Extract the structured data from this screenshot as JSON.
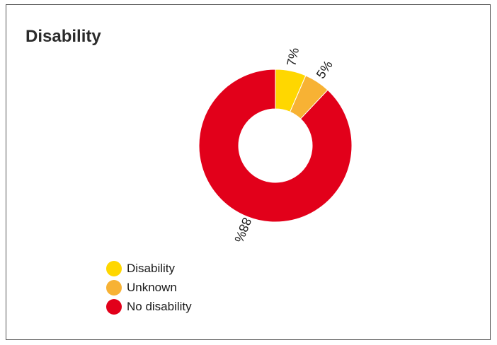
{
  "chart_data": {
    "type": "pie",
    "style": "donut",
    "title": "Disability",
    "categories": [
      "Disability",
      "Unknown",
      "No disability"
    ],
    "values": [
      6.5,
      5.5,
      88
    ],
    "data_labels": [
      "7%",
      "5%",
      "88%"
    ],
    "colors": [
      "#FFD700",
      "#F7B234",
      "#E2001A"
    ],
    "legend": {
      "position": "bottom-left",
      "entries": [
        "Disability",
        "Unknown",
        "No disability"
      ]
    }
  }
}
